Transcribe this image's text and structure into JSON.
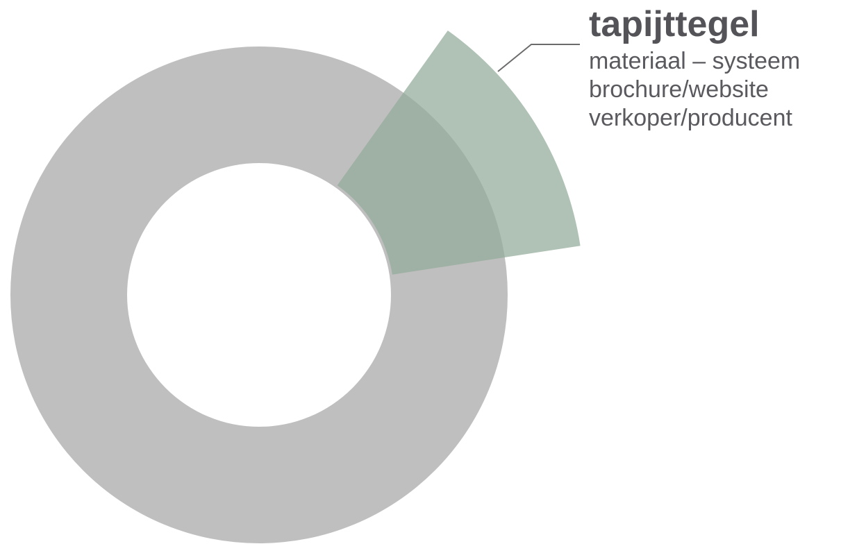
{
  "label": {
    "title": "tapijttegel",
    "lines": [
      "materiaal – systeem",
      "brochure/website",
      "verkoper/producent"
    ]
  }
}
